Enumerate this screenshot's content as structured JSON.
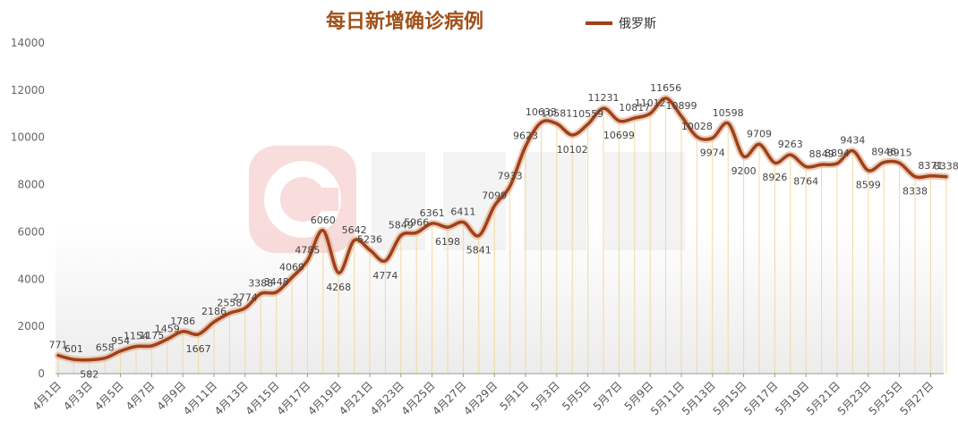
{
  "chart_data": {
    "type": "line",
    "title": "每日新增确诊病例",
    "legend": {
      "position": "top-center",
      "entries": [
        "俄罗斯"
      ]
    },
    "grid": false,
    "ylim": [
      0,
      14000
    ],
    "y_ticks": [
      0,
      2000,
      4000,
      6000,
      8000,
      10000,
      12000,
      14000
    ],
    "x_tick_labels": [
      "4月1日",
      "4月3日",
      "4月5日",
      "4月7日",
      "4月9日",
      "4月11日",
      "4月13日",
      "4月15日",
      "4月17日",
      "4月19日",
      "4月21日",
      "4月23日",
      "4月25日",
      "4月27日",
      "4月29日",
      "5月1日",
      "5月3日",
      "5月5日",
      "5月7日",
      "5月9日",
      "5月11日",
      "5月13日",
      "5月15日",
      "5月17日",
      "5月19日",
      "5月21日",
      "5月23日",
      "5月25日",
      "5月27日"
    ],
    "categories": [
      "4月1日",
      "4月2日",
      "4月3日",
      "4月4日",
      "4月5日",
      "4月6日",
      "4月7日",
      "4月8日",
      "4月9日",
      "4月10日",
      "4月11日",
      "4月12日",
      "4月13日",
      "4月14日",
      "4月15日",
      "4月16日",
      "4月17日",
      "4月18日",
      "4月19日",
      "4月20日",
      "4月21日",
      "4月22日",
      "4月23日",
      "4月24日",
      "4月25日",
      "4月26日",
      "4月27日",
      "4月28日",
      "4月29日",
      "4月30日",
      "5月1日",
      "5月2日",
      "5月3日",
      "5月4日",
      "5月5日",
      "5月6日",
      "5月7日",
      "5月8日",
      "5月9日",
      "5月10日",
      "5月11日",
      "5月12日",
      "5月13日",
      "5月14日",
      "5月15日",
      "5月16日",
      "5月17日",
      "5月18日",
      "5月19日",
      "5月20日",
      "5月21日",
      "5月22日",
      "5月23日",
      "5月24日",
      "5月25日",
      "5月26日",
      "5月27日",
      "5月28日"
    ],
    "series": [
      {
        "name": "俄罗斯",
        "color": "#a0401a",
        "values": [
          771,
          601,
          582,
          658,
          954,
          1154,
          1175,
          1459,
          1786,
          1667,
          2186,
          2558,
          2774,
          3388,
          3448,
          4069,
          4785,
          6060,
          4268,
          5642,
          5236,
          4774,
          5849,
          5966,
          6361,
          6198,
          6411,
          5841,
          7099,
          7933,
          9623,
          10633,
          10581,
          10102,
          10559,
          11231,
          10699,
          10817,
          11012,
          11656,
          10899,
          10028,
          9974,
          10598,
          9200,
          9709,
          8926,
          9263,
          8764,
          8849,
          8894,
          9434,
          8599,
          8946,
          8915,
          8338,
          8371,
          8338
        ],
        "labels": [
          "771",
          "601",
          "582",
          "658",
          "954",
          "1154",
          "1175",
          "1459",
          "1786",
          "1667",
          "2186",
          "2558",
          "2774",
          "3388",
          "3448",
          "4069",
          "4785",
          "6060",
          "4268",
          "5642",
          "5236",
          "4774",
          "5849",
          "5966",
          "6361",
          "6198",
          "6411",
          "5841",
          "7099",
          "7933",
          "9623",
          "10633",
          "10581",
          "10102",
          "10559",
          "11231",
          "10699",
          "10817",
          "11012",
          "11656",
          "10899",
          "10028",
          "9974",
          "10598",
          "9200",
          "9709",
          "8926",
          "9263",
          "8764",
          "8849",
          "8894",
          "9434",
          "8599",
          "8946",
          "8915",
          "8338",
          "8371",
          "8338"
        ]
      }
    ]
  }
}
